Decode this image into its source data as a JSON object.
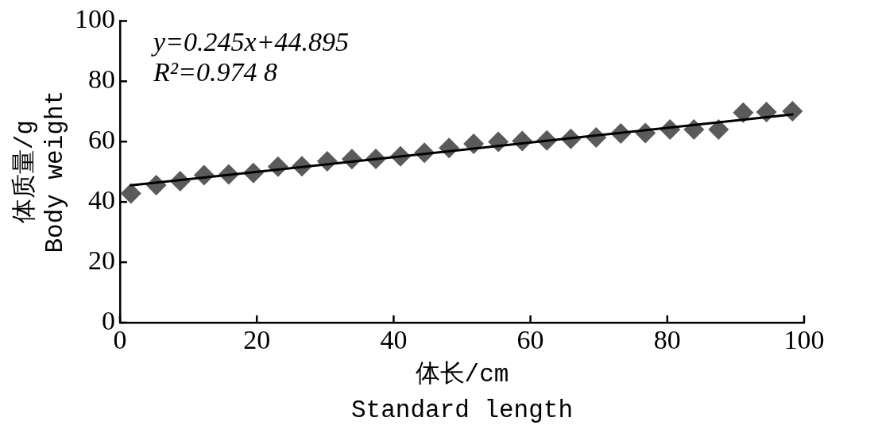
{
  "chart_data": {
    "type": "scatter",
    "xlabel": "体长/cm\nStandard length",
    "ylabel": "体质量/g\nBody weight",
    "annotations": [
      "y=0.245x+44.895",
      "R²=0.974 8"
    ],
    "marker": "diamond",
    "series": [
      {
        "color": "#5a5a5a",
        "x": [
          1.6,
          5.3,
          8.8,
          12.3,
          15.9,
          19.5,
          23.1,
          26.6,
          30.3,
          33.9,
          37.4,
          41.0,
          44.5,
          48.1,
          51.7,
          55.3,
          58.8,
          62.4,
          65.9,
          69.6,
          73.2,
          76.8,
          80.4,
          83.9,
          87.5,
          91.1,
          94.5,
          98.3
        ],
        "values": [
          42.8,
          45.6,
          46.9,
          48.9,
          49.1,
          49.6,
          51.7,
          51.8,
          53.5,
          54.2,
          54.3,
          55.1,
          56.3,
          57.9,
          59.3,
          59.9,
          60.2,
          60.4,
          60.9,
          61.4,
          62.7,
          62.8,
          64.0,
          64.0,
          64.0,
          69.6,
          69.8,
          70.1
        ]
      },
      {
        "type": "line",
        "color": "#000000",
        "marker": "none",
        "x": [
          1.6,
          98.3
        ],
        "values": [
          45.5,
          69.0
        ]
      }
    ],
    "xlim": [
      0,
      100
    ],
    "xticks": [
      0,
      20,
      40,
      60,
      80,
      100
    ],
    "ylim": [
      0,
      100
    ],
    "yticks": [
      0,
      20,
      40,
      60,
      80,
      100
    ]
  }
}
